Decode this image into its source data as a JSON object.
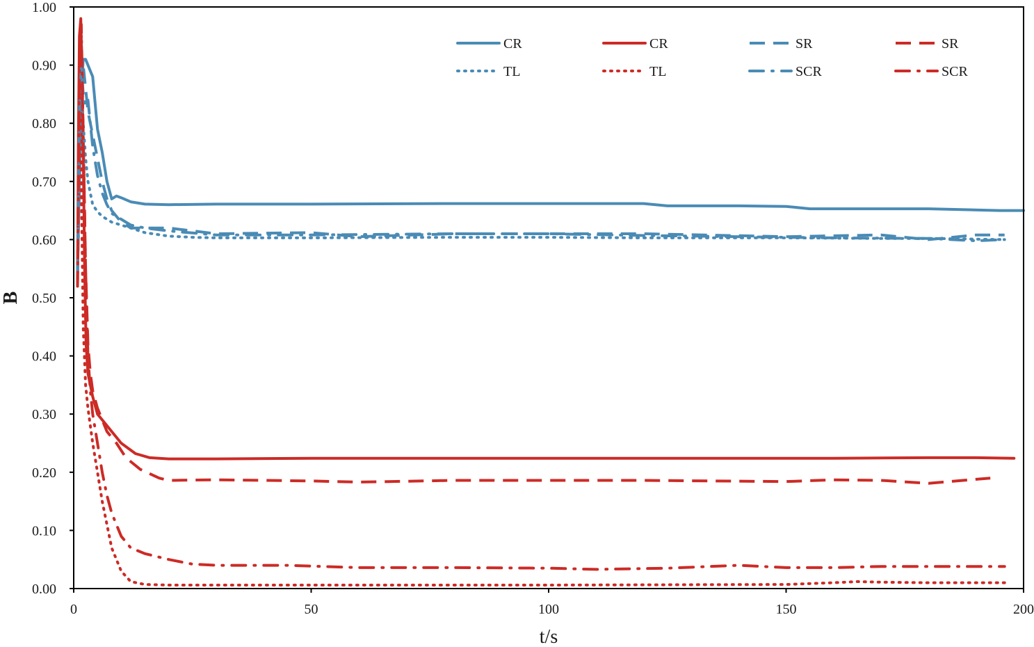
{
  "chart_data": {
    "type": "line",
    "title": "",
    "xlabel": "t/s",
    "ylabel": "B",
    "xlim": [
      0,
      200
    ],
    "ylim": [
      0,
      1
    ],
    "x_ticks": [
      0,
      50,
      100,
      150,
      200
    ],
    "x_tick_labels": [
      "0",
      "50",
      "100",
      "150",
      "200"
    ],
    "y_ticks": [
      0,
      0.1,
      0.2,
      0.3,
      0.4,
      0.5,
      0.6,
      0.7,
      0.8,
      0.9,
      1.0
    ],
    "y_tick_labels": [
      "0.00",
      "0.10",
      "0.20",
      "0.30",
      "0.40",
      "0.50",
      "0.60",
      "0.70",
      "0.80",
      "0.90",
      "1.00"
    ],
    "grid": false,
    "legend_position": "top-right",
    "colors": {
      "blue": "#4a8bb5",
      "red": "#cc2b26"
    },
    "series": [
      {
        "name": "CR",
        "color": "#4a8bb5",
        "style": "solid",
        "x": [
          0.8,
          1.2,
          1.6,
          2.0,
          2.5,
          3.0,
          3.5,
          4.0,
          5,
          6,
          7,
          8,
          9,
          10,
          12,
          15,
          20,
          30,
          50,
          80,
          100,
          120,
          125,
          140,
          150,
          155,
          180,
          195,
          200
        ],
        "y": [
          0.54,
          0.7,
          0.85,
          0.91,
          0.91,
          0.9,
          0.89,
          0.88,
          0.79,
          0.75,
          0.7,
          0.67,
          0.675,
          0.672,
          0.665,
          0.661,
          0.66,
          0.661,
          0.661,
          0.662,
          0.662,
          0.662,
          0.658,
          0.658,
          0.657,
          0.653,
          0.653,
          0.65,
          0.65
        ]
      },
      {
        "name": "CR",
        "color": "#cc2b26",
        "style": "solid",
        "x": [
          0.8,
          1.0,
          1.2,
          1.5,
          1.7,
          2.0,
          2.3,
          2.6,
          3.0,
          3.5,
          4.0,
          5,
          7,
          10,
          13,
          16,
          20,
          30,
          50,
          80,
          100,
          120,
          140,
          160,
          180,
          190,
          198
        ],
        "y": [
          0.52,
          0.78,
          0.95,
          0.98,
          0.9,
          0.75,
          0.55,
          0.42,
          0.37,
          0.35,
          0.33,
          0.3,
          0.28,
          0.25,
          0.232,
          0.225,
          0.223,
          0.223,
          0.224,
          0.224,
          0.224,
          0.224,
          0.224,
          0.224,
          0.225,
          0.225,
          0.224
        ]
      },
      {
        "name": "SR",
        "color": "#4a8bb5",
        "style": "dashed",
        "x": [
          0.8,
          1.5,
          2.0,
          2.5,
          3.0,
          3.5,
          4.0,
          5,
          6,
          7,
          8,
          9,
          10,
          12,
          15,
          20,
          30,
          50,
          60,
          80,
          100,
          120,
          150,
          170,
          180,
          190,
          196
        ],
        "y": [
          0.54,
          0.8,
          0.9,
          0.86,
          0.82,
          0.8,
          0.78,
          0.74,
          0.7,
          0.67,
          0.65,
          0.64,
          0.63,
          0.62,
          0.62,
          0.62,
          0.61,
          0.612,
          0.605,
          0.61,
          0.61,
          0.61,
          0.605,
          0.608,
          0.6,
          0.608,
          0.608
        ]
      },
      {
        "name": "SR",
        "color": "#cc2b26",
        "style": "dashed",
        "x": [
          0.8,
          1.2,
          1.6,
          2.0,
          2.5,
          3.0,
          3.5,
          4.0,
          5,
          6,
          7,
          9,
          11,
          14,
          18,
          20,
          30,
          50,
          60,
          80,
          100,
          120,
          150,
          160,
          170,
          180,
          193
        ],
        "y": [
          0.52,
          0.9,
          0.95,
          0.78,
          0.55,
          0.42,
          0.37,
          0.34,
          0.31,
          0.29,
          0.27,
          0.25,
          0.225,
          0.205,
          0.19,
          0.186,
          0.187,
          0.185,
          0.183,
          0.186,
          0.186,
          0.186,
          0.184,
          0.187,
          0.186,
          0.181,
          0.19
        ]
      },
      {
        "name": "TL",
        "color": "#4a8bb5",
        "style": "dotted",
        "x": [
          0.8,
          1.2,
          1.6,
          2.0,
          2.5,
          3.0,
          4.0,
          5,
          6,
          8,
          10,
          12,
          15,
          20,
          25,
          30,
          50,
          80,
          100,
          120,
          150,
          170,
          180,
          196
        ],
        "y": [
          0.53,
          0.75,
          0.83,
          0.8,
          0.74,
          0.7,
          0.66,
          0.648,
          0.64,
          0.63,
          0.625,
          0.62,
          0.612,
          0.606,
          0.604,
          0.603,
          0.603,
          0.604,
          0.604,
          0.603,
          0.603,
          0.602,
          0.602,
          0.6
        ]
      },
      {
        "name": "TL",
        "color": "#cc2b26",
        "style": "dotted",
        "x": [
          0.8,
          1.0,
          1.3,
          1.6,
          2.0,
          2.5,
          3.0,
          3.5,
          4.0,
          5,
          6,
          7,
          8,
          10,
          12,
          15,
          20,
          30,
          50,
          100,
          150,
          160,
          165,
          170,
          180,
          196
        ],
        "y": [
          0.52,
          0.68,
          0.92,
          0.7,
          0.45,
          0.35,
          0.31,
          0.28,
          0.25,
          0.2,
          0.15,
          0.11,
          0.07,
          0.03,
          0.012,
          0.007,
          0.006,
          0.006,
          0.006,
          0.006,
          0.007,
          0.01,
          0.012,
          0.011,
          0.01,
          0.01
        ]
      },
      {
        "name": "SCR",
        "color": "#4a8bb5",
        "style": "dashdot",
        "x": [
          0.8,
          1.2,
          1.6,
          2.0,
          2.5,
          3.0,
          3.5,
          4.0,
          5,
          6,
          7,
          8,
          9,
          10,
          12,
          15,
          20,
          30,
          50,
          80,
          100,
          120,
          150,
          160,
          180,
          190,
          196
        ],
        "y": [
          0.54,
          0.82,
          0.9,
          0.85,
          0.83,
          0.84,
          0.8,
          0.76,
          0.71,
          0.68,
          0.66,
          0.645,
          0.64,
          0.635,
          0.625,
          0.62,
          0.615,
          0.608,
          0.608,
          0.61,
          0.61,
          0.607,
          0.604,
          0.603,
          0.602,
          0.598,
          0.6
        ]
      },
      {
        "name": "SCR",
        "color": "#cc2b26",
        "style": "dashdot",
        "x": [
          0.8,
          1.2,
          1.6,
          2.0,
          2.5,
          3.0,
          3.5,
          4.0,
          5,
          6,
          7,
          8,
          10,
          12,
          15,
          20,
          25,
          30,
          45,
          60,
          80,
          100,
          110,
          125,
          140,
          150,
          160,
          170,
          180,
          196
        ],
        "y": [
          0.52,
          0.9,
          0.97,
          0.78,
          0.55,
          0.4,
          0.34,
          0.3,
          0.25,
          0.2,
          0.16,
          0.13,
          0.09,
          0.07,
          0.06,
          0.05,
          0.042,
          0.04,
          0.04,
          0.036,
          0.036,
          0.035,
          0.033,
          0.035,
          0.04,
          0.036,
          0.036,
          0.038,
          0.038,
          0.038
        ]
      }
    ]
  }
}
